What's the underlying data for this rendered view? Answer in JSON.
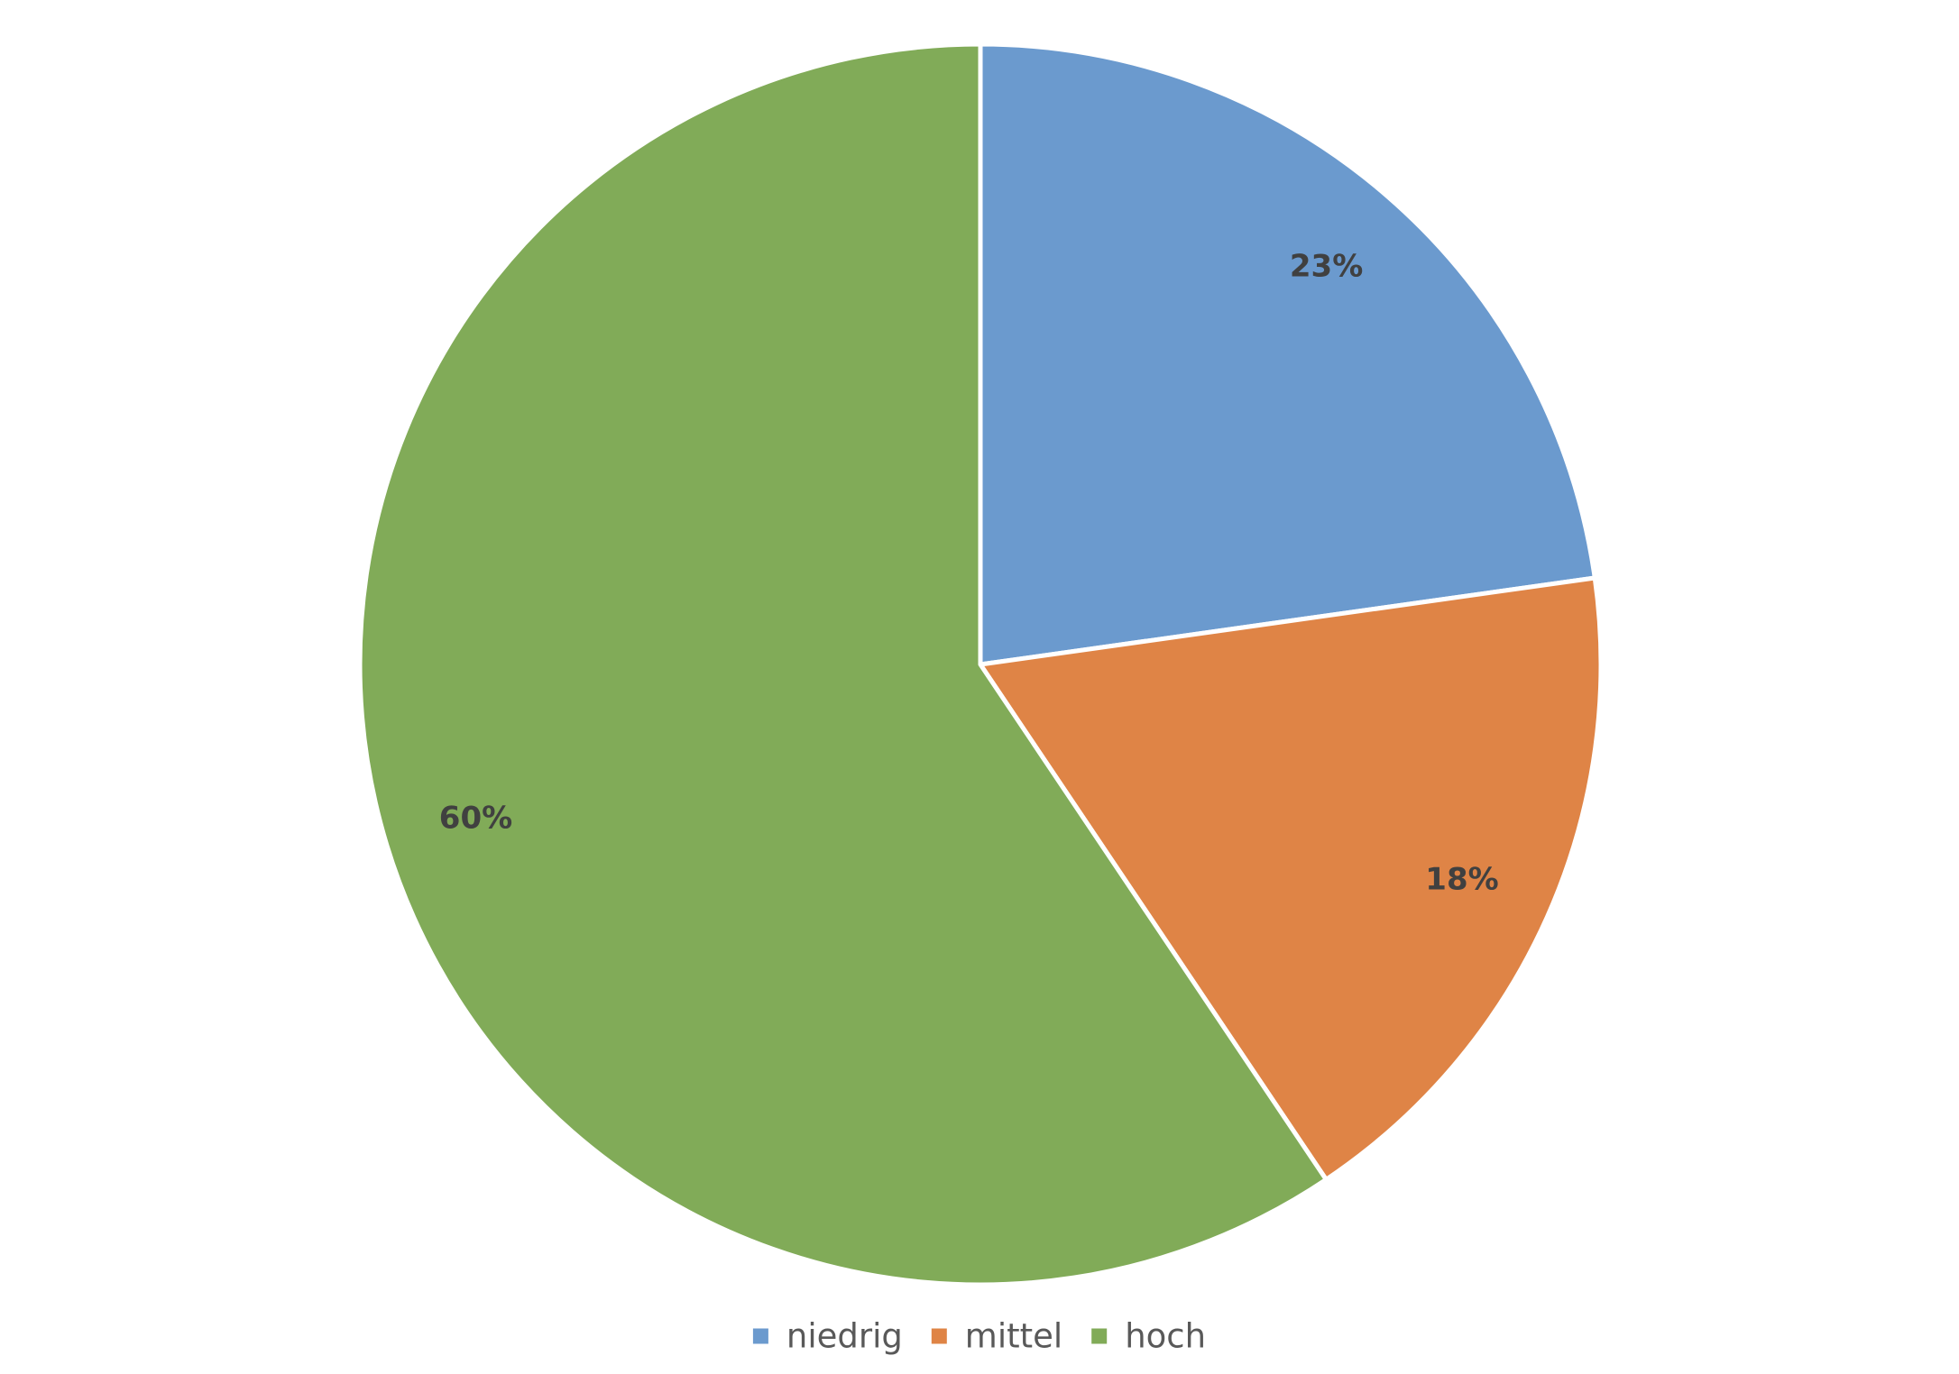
{
  "chart_data": {
    "type": "pie",
    "categories": [
      "niedrig",
      "mittel",
      "hoch"
    ],
    "values": [
      23,
      18,
      60
    ],
    "data_labels": [
      "23%",
      "18%",
      "60%"
    ],
    "colors": [
      "#6b9ace",
      "#df8446",
      "#81ab58"
    ],
    "title": "",
    "legend": {
      "position": "bottom",
      "entries": [
        "niedrig",
        "mittel",
        "hoch"
      ]
    },
    "start_angle": "12 o'clock",
    "direction": "clockwise"
  }
}
